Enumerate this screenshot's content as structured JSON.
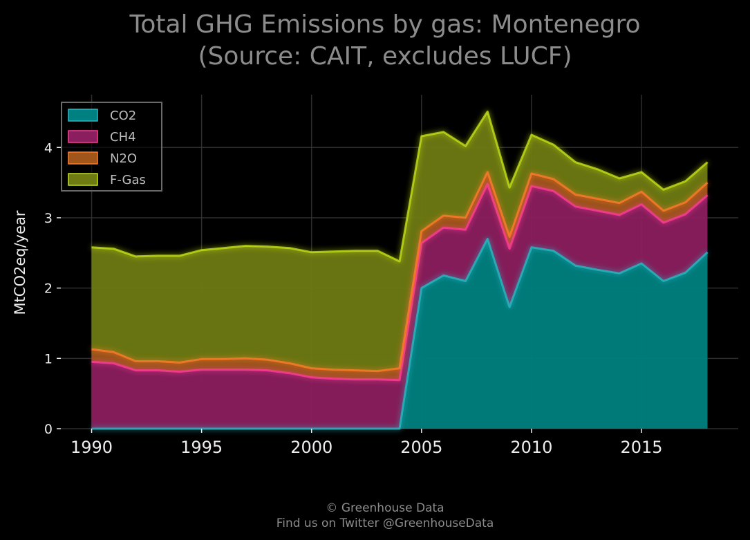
{
  "chart_data": {
    "type": "area",
    "stacked": true,
    "title": "Total GHG Emissions by gas: Montenegro",
    "subtitle": "(Source: CAIT, excludes LUCF)",
    "xlabel": "",
    "ylabel": "MtCO2eq/year",
    "xlim": [
      1988.6,
      2019.4
    ],
    "ylim": [
      0,
      4.75
    ],
    "x_ticks": [
      1990,
      1995,
      2000,
      2005,
      2010,
      2015
    ],
    "y_ticks": [
      0,
      1,
      2,
      3,
      4
    ],
    "grid": true,
    "legend_position": "top-left",
    "x": [
      1990,
      1991,
      1992,
      1993,
      1994,
      1995,
      1996,
      1997,
      1998,
      1999,
      2000,
      2001,
      2002,
      2003,
      2004,
      2005,
      2006,
      2007,
      2008,
      2009,
      2010,
      2011,
      2012,
      2013,
      2014,
      2015,
      2016,
      2017,
      2018
    ],
    "series": [
      {
        "name": "CO2",
        "color": "#008080",
        "line_color": "#2ab8c2",
        "values": [
          0,
          0,
          0,
          0,
          0,
          0,
          0,
          0,
          0,
          0,
          0,
          0,
          0,
          0,
          0,
          2.0,
          2.18,
          2.1,
          2.7,
          1.73,
          2.58,
          2.53,
          2.32,
          2.26,
          2.21,
          2.35,
          2.1,
          2.22,
          2.51
        ]
      },
      {
        "name": "CH4",
        "color": "#8b1e5e",
        "line_color": "#ff3d97",
        "values": [
          0.95,
          0.93,
          0.83,
          0.83,
          0.81,
          0.84,
          0.84,
          0.84,
          0.83,
          0.79,
          0.73,
          0.71,
          0.7,
          0.7,
          0.69,
          0.64,
          0.68,
          0.73,
          0.78,
          0.83,
          0.87,
          0.85,
          0.84,
          0.84,
          0.83,
          0.84,
          0.83,
          0.83,
          0.81
        ]
      },
      {
        "name": "N2O",
        "color": "#a0561a",
        "line_color": "#ff7d2a",
        "values": [
          0.18,
          0.16,
          0.13,
          0.13,
          0.13,
          0.15,
          0.15,
          0.16,
          0.15,
          0.14,
          0.13,
          0.13,
          0.13,
          0.12,
          0.17,
          0.17,
          0.17,
          0.17,
          0.17,
          0.17,
          0.18,
          0.17,
          0.17,
          0.17,
          0.17,
          0.18,
          0.17,
          0.17,
          0.18
        ]
      },
      {
        "name": "F-Gas",
        "color": "#6e7a12",
        "line_color": "#c4e01a",
        "values": [
          1.45,
          1.47,
          1.49,
          1.5,
          1.52,
          1.55,
          1.58,
          1.6,
          1.61,
          1.64,
          1.65,
          1.68,
          1.7,
          1.71,
          1.52,
          1.35,
          1.19,
          1.02,
          0.86,
          0.7,
          0.55,
          0.49,
          0.46,
          0.42,
          0.35,
          0.28,
          0.3,
          0.3,
          0.29
        ]
      }
    ],
    "colors": {
      "background": "#000000",
      "grid": "#2e2e2e",
      "tick_text": "#ececec",
      "title_text": "#8c8c8c",
      "legend_border": "#6a6a6a"
    }
  },
  "footer": {
    "line1": "© Greenhouse Data",
    "line2": "Find us on Twitter @GreenhouseData"
  }
}
